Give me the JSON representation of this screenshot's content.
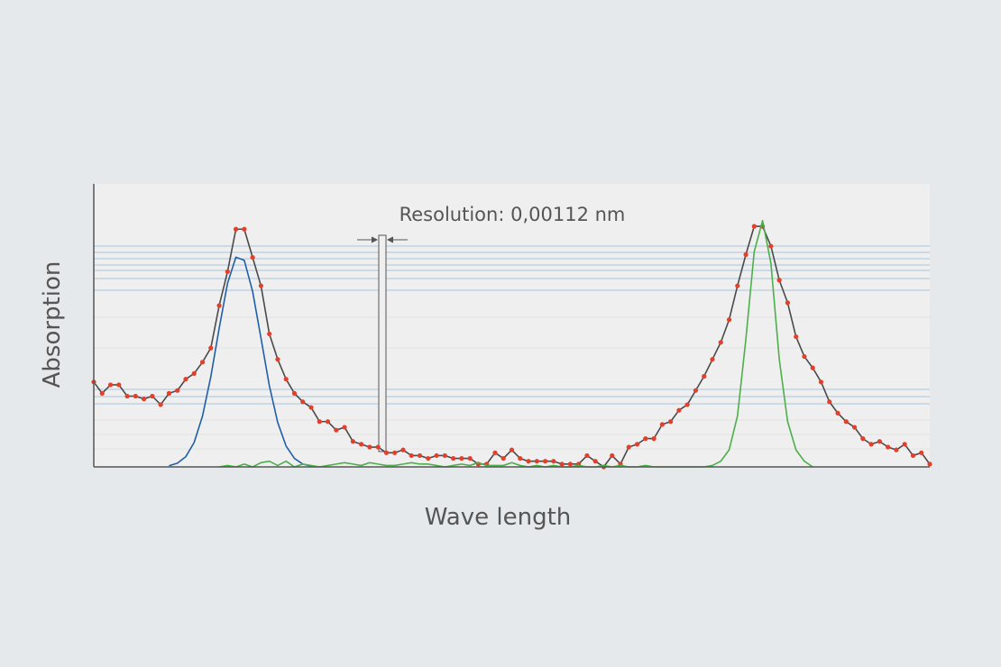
{
  "chart_data": {
    "type": "line",
    "x_label": "Wave length",
    "y_label": "Absorption",
    "annotation": "Resolution: 0,00112 nm",
    "xlim": [
      0,
      100
    ],
    "ylim": [
      0,
      100
    ],
    "series": [
      {
        "color": "#4a4a4a",
        "marker_color": "#e2402b",
        "markers": true,
        "x": [
          0,
          1,
          2,
          3,
          4,
          5,
          6,
          7,
          8,
          9,
          10,
          11,
          12,
          13,
          14,
          15,
          16,
          17,
          18,
          19,
          20,
          21,
          22,
          23,
          24,
          25,
          26,
          27,
          28,
          29,
          30,
          31,
          32,
          33,
          34,
          35,
          36,
          37,
          38,
          39,
          40,
          41,
          42,
          43,
          44,
          45,
          46,
          47,
          48,
          49,
          50,
          51,
          52,
          53,
          54,
          55,
          56,
          57,
          58,
          59,
          60,
          61,
          62,
          63,
          64,
          65,
          66,
          67,
          68,
          69,
          70,
          71,
          72,
          73,
          74,
          75,
          76,
          77,
          78,
          79,
          80,
          81,
          82,
          83,
          84,
          85,
          86,
          87,
          88,
          89,
          90,
          91,
          92,
          93,
          94,
          95,
          96,
          97,
          98,
          99,
          100
        ],
        "values": [
          30,
          26,
          29,
          29,
          25,
          25,
          24,
          25,
          22,
          26,
          27,
          31,
          33,
          37,
          42,
          57,
          69,
          84,
          84,
          74,
          64,
          47,
          38,
          31,
          26,
          23,
          21,
          16,
          16,
          13,
          14,
          9,
          8,
          7,
          7,
          5,
          5,
          6,
          4,
          4,
          3,
          4,
          4,
          3,
          3,
          3,
          1,
          1,
          5,
          3,
          6,
          3,
          2,
          2,
          2,
          2,
          1,
          1,
          1,
          4,
          2,
          0,
          4,
          1,
          7,
          8,
          10,
          10,
          15,
          16,
          20,
          22,
          27,
          32,
          38,
          44,
          52,
          64,
          75,
          85,
          85,
          78,
          66,
          58,
          46,
          39,
          35,
          30,
          23,
          19,
          16,
          14,
          10,
          8,
          9,
          7,
          6,
          8,
          4,
          5,
          1
        ]
      },
      {
        "color": "#1f5fa8",
        "markers": false,
        "x": [
          9,
          10,
          11,
          12,
          13,
          14,
          15,
          16,
          17,
          18,
          19,
          20,
          21,
          22,
          23,
          24,
          25,
          26
        ],
        "values": [
          0.4,
          1.3,
          3.6,
          8.6,
          17.9,
          31.9,
          49,
          64.9,
          74.1,
          73,
          62,
          45.5,
          28.7,
          15.7,
          7.4,
          3,
          1,
          0.3
        ]
      },
      {
        "color": "#4caf4a",
        "markers": false,
        "x": [
          15,
          16,
          17,
          18,
          19,
          20,
          21,
          22,
          23,
          24,
          25,
          26,
          27,
          28,
          29,
          30,
          31,
          32,
          33,
          34,
          35,
          36,
          37,
          38,
          39,
          40,
          41,
          42,
          43,
          44,
          45,
          46,
          47,
          48,
          49,
          50,
          51,
          52,
          53,
          54,
          55,
          56,
          57,
          58,
          59,
          60,
          61,
          62,
          63,
          64,
          65,
          66,
          67,
          68,
          69,
          70,
          71,
          72,
          73,
          74,
          75,
          76,
          77,
          78,
          79,
          80,
          81,
          82,
          83,
          84,
          85,
          86
        ],
        "values": [
          0,
          0.5,
          0,
          1,
          0,
          1.5,
          2,
          0.5,
          2,
          0,
          1,
          0.5,
          0,
          0.5,
          1,
          1.5,
          1,
          0.5,
          1.5,
          1,
          0.5,
          0.5,
          1,
          1.5,
          1,
          1,
          0.5,
          0,
          0.5,
          1,
          0.5,
          1.5,
          0.5,
          0.5,
          0.5,
          1.5,
          0.5,
          0,
          0.5,
          0,
          0.5,
          0,
          0,
          0.5,
          0,
          0,
          0.5,
          0,
          0.5,
          0,
          0,
          0.5,
          0,
          0,
          0,
          0,
          0,
          0,
          0,
          0.5,
          2,
          6,
          18,
          45,
          76,
          87,
          72,
          38,
          16,
          6,
          2,
          0
        ]
      }
    ]
  }
}
